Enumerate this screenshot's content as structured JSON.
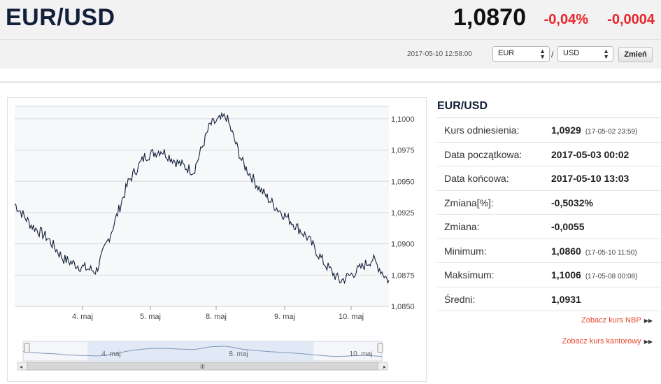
{
  "header": {
    "pair": "EUR/USD",
    "rate": "1,0870",
    "change_pct": "-0,04%",
    "change_abs": "-0,0004"
  },
  "toolbar": {
    "timestamp": "2017-05-10 12:58:00",
    "from_currency": "EUR",
    "separator": "/",
    "to_currency": "USD",
    "swap_label": "Zmień"
  },
  "colors": {
    "negative": "#e8262d",
    "series": "#12203a",
    "link": "#e8462d"
  },
  "info": {
    "title": "EUR/USD",
    "rows": [
      {
        "label": "Kurs odniesienia:",
        "value": "1,0929",
        "sub": "(17-05-02 23:59)"
      },
      {
        "label": "Data początkowa:",
        "value": "2017-05-03 00:02",
        "sub": ""
      },
      {
        "label": "Data końcowa:",
        "value": "2017-05-10 13:03",
        "sub": ""
      },
      {
        "label": "Zmiana[%]:",
        "value": "-0,5032%",
        "sub": ""
      },
      {
        "label": "Zmiana:",
        "value": "-0,0055",
        "sub": ""
      },
      {
        "label": "Minimum:",
        "value": "1,0860",
        "sub": "(17-05-10 11:50)"
      },
      {
        "label": "Maksimum:",
        "value": "1,1006",
        "sub": "(17-05-08 00:08)"
      },
      {
        "label": "Średni:",
        "value": "1,0931",
        "sub": ""
      }
    ],
    "links": [
      "Zobacz kurs NBP",
      "Zobacz kurs kantorowy"
    ]
  },
  "chart_data": {
    "type": "line",
    "x": [
      "3 maj 00:00",
      "3 maj 06:00",
      "3 maj 12:00",
      "3 maj 18:00",
      "4 maj 00:00",
      "4 maj 06:00",
      "4 maj 12:00",
      "4 maj 18:00",
      "5 maj 00:00",
      "5 maj 06:00",
      "5 maj 12:00",
      "5 maj 18:00",
      "8 maj 00:00",
      "8 maj 06:00",
      "8 maj 12:00",
      "8 maj 18:00",
      "9 maj 00:00",
      "9 maj 06:00",
      "9 maj 12:00",
      "9 maj 18:00",
      "10 maj 00:00",
      "10 maj 06:00",
      "10 maj 12:00",
      "10 maj 13:00"
    ],
    "series": [
      {
        "values": [
          1.0932,
          1.0915,
          1.0905,
          1.0888,
          1.0882,
          1.0878,
          1.0912,
          1.095,
          1.097,
          1.0975,
          1.0965,
          1.0958,
          1.0995,
          1.1002,
          1.0965,
          1.0945,
          1.093,
          1.0918,
          1.0905,
          1.0885,
          1.087,
          1.0878,
          1.0888,
          1.087
        ]
      }
    ],
    "xticks": [
      "4. maj",
      "5. maj",
      "8. maj",
      "9. maj",
      "10. maj"
    ],
    "yticks": [
      "1,0850",
      "1,0875",
      "1,0900",
      "1,0925",
      "1,0950",
      "1,0975",
      "1,1000"
    ],
    "ylim": [
      1.085,
      1.101
    ],
    "grid": true,
    "navigator": {
      "labels": [
        "4. maj",
        "8. maj",
        "10. maj"
      ],
      "scrollbar_grip": "III"
    }
  }
}
